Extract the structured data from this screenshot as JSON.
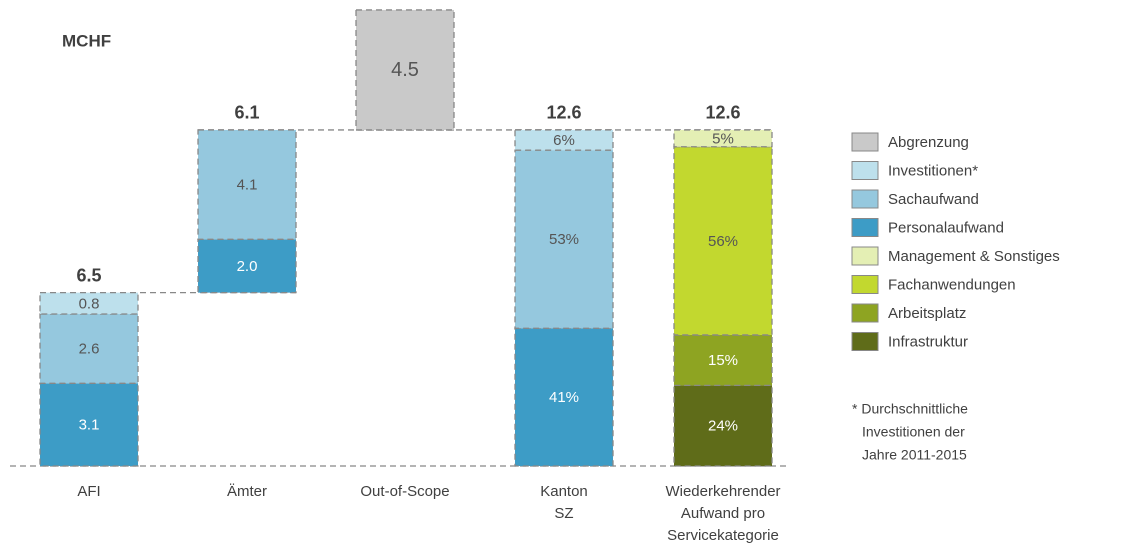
{
  "chart_data": {
    "type": "waterfall",
    "unit_label": "MCHF",
    "categories": [
      [
        "AFI"
      ],
      [
        "Ämter"
      ],
      [
        "Out-of-Scope"
      ],
      [
        "Kanton",
        "SZ"
      ],
      [
        "Wiederkehrender",
        "Aufwand pro",
        "Servicekategorie"
      ]
    ],
    "series": [
      {
        "name": "Abgrenzung",
        "color": "#c9c9c9",
        "label_color": "#555555"
      },
      {
        "name": "Investitionen*",
        "color": "#bde0ec",
        "label_color": "#555555"
      },
      {
        "name": "Sachaufwand",
        "color": "#95c8de",
        "label_color": "#555555"
      },
      {
        "name": "Personalaufwand",
        "color": "#3d9cc6",
        "label_color": "#ffffff"
      },
      {
        "name": "Management & Sonstiges",
        "color": "#e4efb4",
        "label_color": "#555555"
      },
      {
        "name": "Fachanwendungen",
        "color": "#c2d82f",
        "label_color": "#555555"
      },
      {
        "name": "Arbeitsplatz",
        "color": "#8ea422",
        "label_color": "#ffffff"
      },
      {
        "name": "Infrastruktur",
        "color": "#5f6c19",
        "label_color": "#ffffff"
      }
    ],
    "bars": [
      {
        "floating": false,
        "total": 6.5,
        "series": [
          3,
          2,
          1
        ],
        "values": [
          3.1,
          2.6,
          0.8
        ]
      },
      {
        "floating": true,
        "total": 6.1,
        "series": [
          3,
          2
        ],
        "values": [
          2.0,
          4.1
        ],
        "value_labels": [
          "2.0",
          "4.1"
        ]
      },
      {
        "floating": true,
        "series": [
          0
        ],
        "values": [
          4.5
        ]
      },
      {
        "floating": false,
        "total": 12.6,
        "percent": true,
        "series": [
          3,
          2,
          1
        ],
        "values": [
          41,
          53,
          6
        ],
        "value_labels": [
          "41%",
          "53%",
          "6%"
        ]
      },
      {
        "floating": false,
        "total": 12.6,
        "percent": true,
        "series": [
          7,
          6,
          5,
          4
        ],
        "values": [
          24,
          15,
          56,
          5
        ],
        "value_labels": [
          "24%",
          "15%",
          "56%",
          "5%"
        ]
      }
    ],
    "footnote": [
      "* Durchschnittliche",
      "Investitionen der",
      "Jahre 2011-2015"
    ]
  }
}
